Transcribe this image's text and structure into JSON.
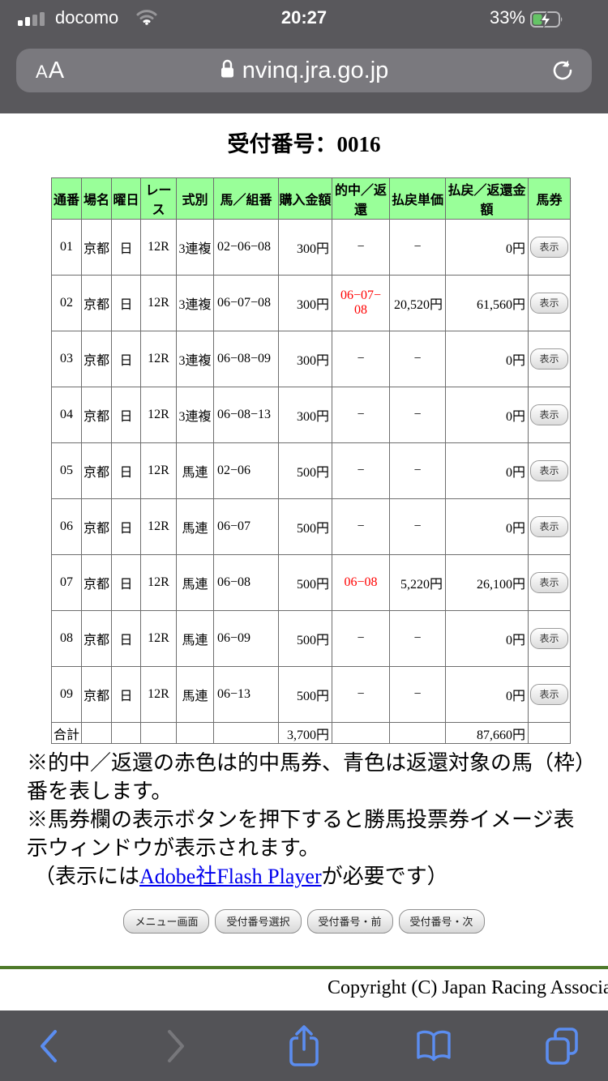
{
  "status_bar": {
    "carrier": "docomo",
    "time": "20:27",
    "battery_percent": "33%"
  },
  "url_bar": {
    "reader_button": "AA",
    "host": "nvinq.jra.go.jp"
  },
  "page": {
    "title": "受付番号：0016",
    "table": {
      "columns": [
        "通番",
        "場名",
        "曜日",
        "レース",
        "式別",
        "馬／組番",
        "購入金額",
        "的中／返還",
        "払戻単価",
        "払戻／返還金額",
        "馬券"
      ],
      "show_button_label": "表示",
      "rows": [
        {
          "no": "01",
          "place": "京都",
          "day": "日",
          "race": "12R",
          "type": "3連複",
          "numbers": "02−06−08",
          "amount": "300円",
          "hit": [
            "−"
          ],
          "hit_color": null,
          "unit": "−",
          "payout": "0円"
        },
        {
          "no": "02",
          "place": "京都",
          "day": "日",
          "race": "12R",
          "type": "3連複",
          "numbers": "06−07−08",
          "amount": "300円",
          "hit": [
            "06−07−",
            "08"
          ],
          "hit_color": "red",
          "unit": "20,520円",
          "payout": "61,560円"
        },
        {
          "no": "03",
          "place": "京都",
          "day": "日",
          "race": "12R",
          "type": "3連複",
          "numbers": "06−08−09",
          "amount": "300円",
          "hit": [
            "−"
          ],
          "hit_color": null,
          "unit": "−",
          "payout": "0円"
        },
        {
          "no": "04",
          "place": "京都",
          "day": "日",
          "race": "12R",
          "type": "3連複",
          "numbers": "06−08−13",
          "amount": "300円",
          "hit": [
            "−"
          ],
          "hit_color": null,
          "unit": "−",
          "payout": "0円"
        },
        {
          "no": "05",
          "place": "京都",
          "day": "日",
          "race": "12R",
          "type": "馬連",
          "numbers": "02−06",
          "amount": "500円",
          "hit": [
            "−"
          ],
          "hit_color": null,
          "unit": "−",
          "payout": "0円"
        },
        {
          "no": "06",
          "place": "京都",
          "day": "日",
          "race": "12R",
          "type": "馬連",
          "numbers": "06−07",
          "amount": "500円",
          "hit": [
            "−"
          ],
          "hit_color": null,
          "unit": "−",
          "payout": "0円"
        },
        {
          "no": "07",
          "place": "京都",
          "day": "日",
          "race": "12R",
          "type": "馬連",
          "numbers": "06−08",
          "amount": "500円",
          "hit": [
            "06−08"
          ],
          "hit_color": "red",
          "unit": "5,220円",
          "payout": "26,100円"
        },
        {
          "no": "08",
          "place": "京都",
          "day": "日",
          "race": "12R",
          "type": "馬連",
          "numbers": "06−09",
          "amount": "500円",
          "hit": [
            "−"
          ],
          "hit_color": null,
          "unit": "−",
          "payout": "0円"
        },
        {
          "no": "09",
          "place": "京都",
          "day": "日",
          "race": "12R",
          "type": "馬連",
          "numbers": "06−13",
          "amount": "500円",
          "hit": [
            "−"
          ],
          "hit_color": null,
          "unit": "−",
          "payout": "0円"
        }
      ],
      "total": {
        "label": "合計",
        "amount": "3,700円",
        "payout": "87,660円"
      }
    },
    "notes": {
      "note1": "※的中／返還の赤色は的中馬券、青色は返還対象の馬（枠）番を表します。",
      "note2": "※馬券欄の表示ボタンを押下すると勝馬投票券イメージ表示ウィンドウが表示されます。",
      "note3_pre": "（表示には",
      "note3_link": "Adobe社Flash Player",
      "note3_post": "が必要です）"
    },
    "nav_buttons": [
      "メニュー画面",
      "受付番号選択",
      "受付番号・前",
      "受付番号・次"
    ],
    "copyright": "Copyright (C) Japan Racing Association"
  },
  "colors": {
    "header_green": "#99ff99",
    "hit_red": "#ff0000",
    "link_blue": "#0000ee",
    "separator_green": "#4e7a2a",
    "ios_chrome_dark": "#59585c",
    "toolbar_dark": "#535357",
    "ios_icon_blue": "#5b8df0",
    "battery_green": "#65c466"
  }
}
